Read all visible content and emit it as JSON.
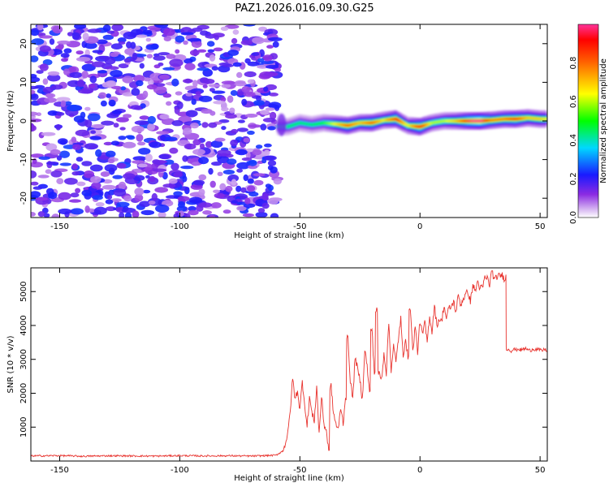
{
  "title": "PAZ1.2026.016.09.30.G25",
  "chart_data": [
    {
      "type": "heatmap",
      "name": "spectrogram",
      "xlabel": "Height of straight line (km)",
      "ylabel": "Frequency (Hz)",
      "xlim": [
        -162,
        53
      ],
      "ylim": [
        -25,
        25
      ],
      "xticks": [
        -150,
        -100,
        -50,
        0,
        50
      ],
      "yticks": [
        -20,
        -10,
        0,
        10,
        20
      ],
      "colorbar": {
        "label": "Normalized spectral amplitude",
        "range": [
          0,
          1
        ],
        "ticks": [
          0.0,
          0.2,
          0.4,
          0.6,
          0.8
        ]
      },
      "noise_region": {
        "x_range": [
          -162,
          -59
        ],
        "freq_range": [
          -25,
          25
        ],
        "amplitude_range": [
          0.05,
          0.25
        ]
      },
      "ridge": {
        "x": [
          -59,
          -55,
          -50,
          -45,
          -40,
          -35,
          -30,
          -25,
          -20,
          -15,
          -10,
          -5,
          0,
          5,
          10,
          15,
          20,
          25,
          30,
          35,
          40,
          45,
          50,
          53
        ],
        "freq": [
          -1.5,
          -1.5,
          -0.5,
          -1.0,
          -0.5,
          -0.8,
          -1.2,
          -0.5,
          -0.5,
          0.2,
          0.5,
          -1.2,
          -1.5,
          -0.5,
          0.0,
          0.0,
          0.0,
          0.0,
          0.2,
          0.5,
          0.5,
          0.8,
          0.5,
          0.5
        ],
        "amplitude": [
          0.3,
          0.35,
          0.35,
          0.35,
          0.4,
          0.55,
          0.75,
          0.6,
          0.75,
          0.55,
          0.8,
          0.5,
          0.85,
          0.5,
          0.5,
          0.6,
          0.85,
          0.95,
          0.7,
          0.7,
          0.8,
          0.6,
          0.6,
          0.55
        ]
      }
    },
    {
      "type": "line",
      "name": "snr",
      "color": "#e8332e",
      "xlabel": "Height of straight line (km)",
      "ylabel": "SNR (10 * v/v)",
      "xlim": [
        -162,
        53
      ],
      "ylim": [
        0,
        5700
      ],
      "xticks": [
        -150,
        -100,
        -50,
        0,
        50
      ],
      "yticks": [
        1000,
        2000,
        3000,
        4000,
        5000
      ],
      "x": [
        -162,
        -150,
        -140,
        -130,
        -120,
        -110,
        -100,
        -90,
        -80,
        -70,
        -60,
        -57,
        -55,
        -54,
        -53,
        -52,
        -51,
        -50,
        -49,
        -48,
        -47,
        -46,
        -45,
        -44,
        -43,
        -42,
        -41,
        -40,
        -39,
        -38,
        -37,
        -36,
        -35,
        -34,
        -33,
        -32,
        -31,
        -30,
        -29,
        -28,
        -27,
        -26,
        -25,
        -24,
        -23,
        -22,
        -21,
        -20,
        -19,
        -18,
        -17,
        -16,
        -15,
        -14,
        -13,
        -12,
        -11,
        -10,
        -9,
        -8,
        -7,
        -6,
        -5,
        -4,
        -3,
        -2,
        -1,
        0,
        1,
        2,
        3,
        4,
        5,
        6,
        7,
        8,
        9,
        10,
        11,
        12,
        13,
        14,
        15,
        16,
        17,
        18,
        19,
        20,
        21,
        22,
        23,
        24,
        25,
        26,
        27,
        28,
        29,
        30,
        31,
        32,
        33,
        34,
        35,
        35.8,
        36,
        37,
        38,
        39,
        40,
        41,
        42,
        43,
        44,
        45,
        46,
        47,
        48,
        49,
        50,
        51,
        52,
        53
      ],
      "y": [
        150,
        160,
        140,
        155,
        150,
        145,
        160,
        150,
        155,
        145,
        170,
        300,
        800,
        1500,
        2450,
        1800,
        2100,
        1500,
        2350,
        1700,
        1000,
        1900,
        1400,
        1200,
        2200,
        800,
        1900,
        1100,
        900,
        300,
        2200,
        1400,
        1100,
        900,
        1600,
        1100,
        1900,
        3600,
        2400,
        1800,
        3100,
        2700,
        2400,
        1800,
        3300,
        2800,
        2000,
        3900,
        2600,
        4450,
        2600,
        2400,
        3200,
        2600,
        4100,
        2700,
        3400,
        2900,
        3600,
        4200,
        3000,
        3700,
        3000,
        4550,
        3200,
        4000,
        3200,
        4150,
        3700,
        4100,
        3500,
        4300,
        3800,
        4600,
        4000,
        4200,
        4100,
        4600,
        4200,
        4500,
        4550,
        4700,
        4400,
        4900,
        4600,
        4800,
        4900,
        5000,
        4700,
        5200,
        5000,
        5300,
        5100,
        5100,
        5400,
        5400,
        5200,
        5650,
        5300,
        5450,
        5450,
        5500,
        5400,
        5450,
        3300,
        3300,
        3250,
        3300,
        3280,
        3310,
        3270,
        3300,
        3320,
        3280,
        3260,
        3310,
        3290,
        3300,
        3270,
        3260,
        3300,
        3250
      ]
    }
  ]
}
